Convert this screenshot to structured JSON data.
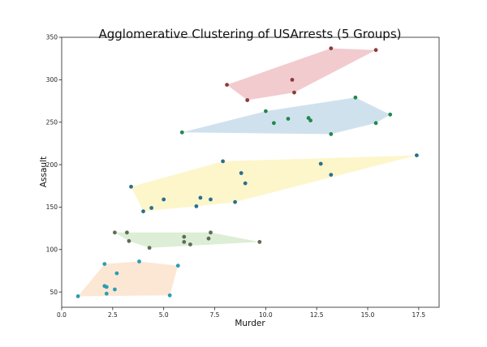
{
  "chart_data": {
    "type": "scatter",
    "title": "Agglomerative Clustering of USArrests (5 Groups)",
    "xlabel": "Murder",
    "ylabel": "Assault",
    "xlim": [
      0.0,
      18.5
    ],
    "ylim": [
      32,
      350
    ],
    "xticks": [
      "0.0",
      "2.5",
      "5.0",
      "7.5",
      "10.0",
      "12.5",
      "15.0",
      "17.5"
    ],
    "xtick_values": [
      0.0,
      2.5,
      5.0,
      7.5,
      10.0,
      12.5,
      15.0,
      17.5
    ],
    "yticks": [
      "50",
      "100",
      "150",
      "200",
      "250",
      "300",
      "350"
    ],
    "ytick_values": [
      50,
      100,
      150,
      200,
      250,
      300,
      350
    ],
    "grid": false,
    "series": [
      {
        "hull_color": "#e8a0a8",
        "point_color": "#8b3a3a",
        "points": [
          [
            8.1,
            294
          ],
          [
            9.1,
            276
          ],
          [
            11.3,
            300
          ],
          [
            11.4,
            285
          ],
          [
            13.2,
            337
          ],
          [
            15.4,
            335
          ]
        ]
      },
      {
        "hull_color": "#a9c8e0",
        "point_color": "#1f8a4c",
        "points": [
          [
            5.9,
            238
          ],
          [
            10.0,
            263
          ],
          [
            10.4,
            249
          ],
          [
            11.1,
            254
          ],
          [
            12.1,
            255
          ],
          [
            12.2,
            252
          ],
          [
            13.2,
            236
          ],
          [
            14.4,
            279
          ],
          [
            15.4,
            249
          ],
          [
            16.1,
            259
          ]
        ]
      },
      {
        "hull_color": "#fbeea0",
        "point_color": "#2a6f8f",
        "points": [
          [
            3.4,
            174
          ],
          [
            4.0,
            145
          ],
          [
            4.4,
            149
          ],
          [
            5.0,
            159
          ],
          [
            6.6,
            151
          ],
          [
            6.8,
            161
          ],
          [
            7.3,
            159
          ],
          [
            7.9,
            204
          ],
          [
            8.5,
            156
          ],
          [
            8.8,
            190
          ],
          [
            9.0,
            178
          ],
          [
            12.7,
            201
          ],
          [
            13.2,
            188
          ],
          [
            17.4,
            211
          ]
        ]
      },
      {
        "hull_color": "#bfe0b4",
        "point_color": "#5f6b57",
        "points": [
          [
            2.6,
            120
          ],
          [
            3.2,
            120
          ],
          [
            3.3,
            110
          ],
          [
            4.3,
            102
          ],
          [
            6.0,
            115
          ],
          [
            6.0,
            109
          ],
          [
            6.3,
            106
          ],
          [
            7.2,
            113
          ],
          [
            7.3,
            120
          ],
          [
            9.7,
            109
          ]
        ]
      },
      {
        "hull_color": "#f9d3b0",
        "point_color": "#2a9db5",
        "points": [
          [
            0.8,
            45
          ],
          [
            2.1,
            83
          ],
          [
            2.1,
            57
          ],
          [
            2.2,
            56
          ],
          [
            2.2,
            48
          ],
          [
            2.6,
            53
          ],
          [
            2.7,
            72
          ],
          [
            3.8,
            86
          ],
          [
            5.3,
            46
          ],
          [
            5.7,
            81
          ]
        ]
      }
    ]
  }
}
